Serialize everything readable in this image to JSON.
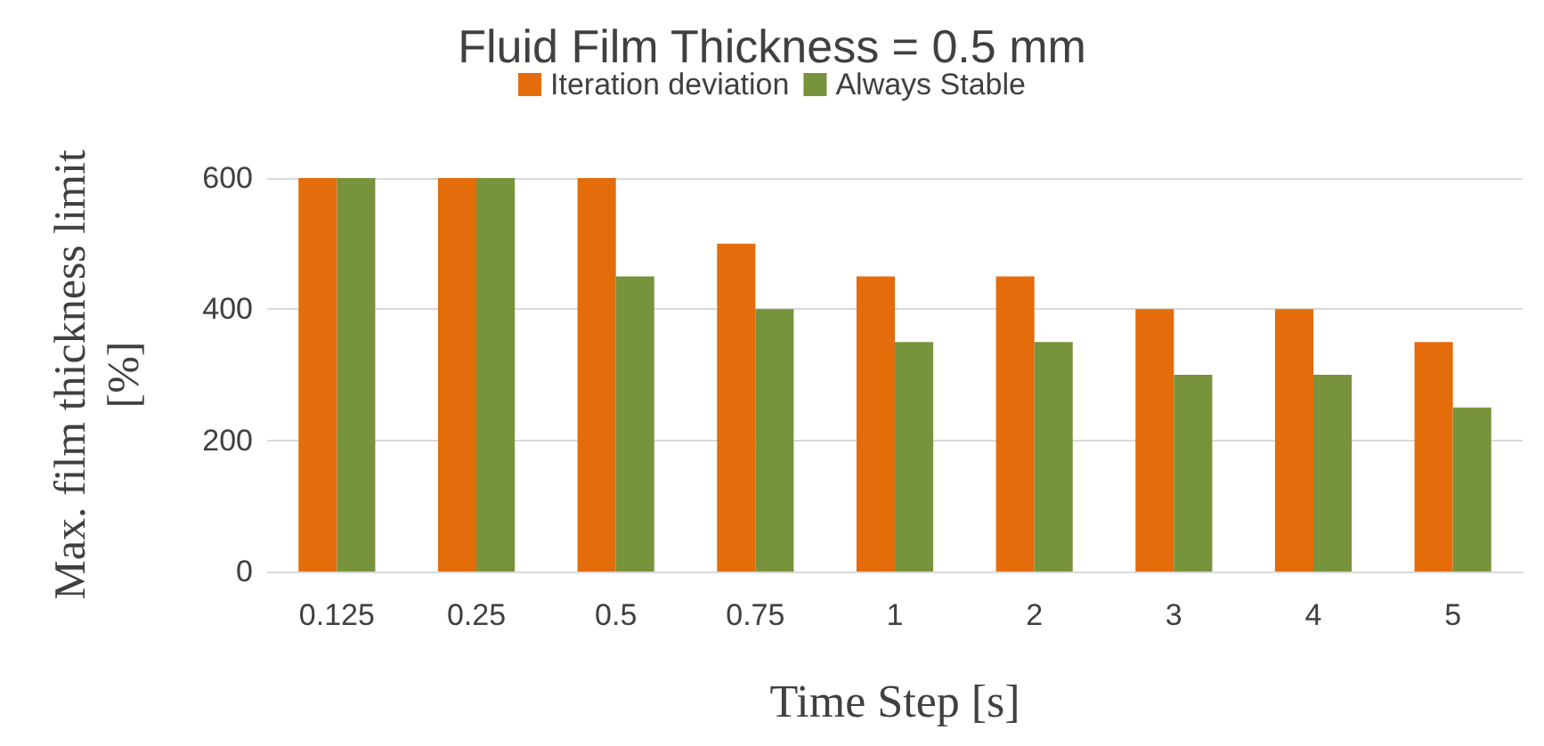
{
  "chart_data": {
    "type": "bar",
    "title": "Fluid Film Thickness = 0.5 mm",
    "xlabel": "Time Step [s]",
    "ylabel": "Max. film thickness limit [%]",
    "categories": [
      "0.125",
      "0.25",
      "0.5",
      "0.75",
      "1",
      "2",
      "3",
      "4",
      "5"
    ],
    "series": [
      {
        "name": "Iteration deviation",
        "color": "#e46c0a",
        "values": [
          600,
          600,
          600,
          500,
          450,
          450,
          400,
          400,
          350
        ]
      },
      {
        "name": "Always Stable",
        "color": "#77933c",
        "values": [
          600,
          600,
          450,
          400,
          350,
          350,
          300,
          300,
          250
        ]
      }
    ],
    "ylim": [
      0,
      600
    ],
    "yticks": [
      0,
      200,
      400,
      600
    ],
    "grid": "y",
    "legend": "top"
  }
}
